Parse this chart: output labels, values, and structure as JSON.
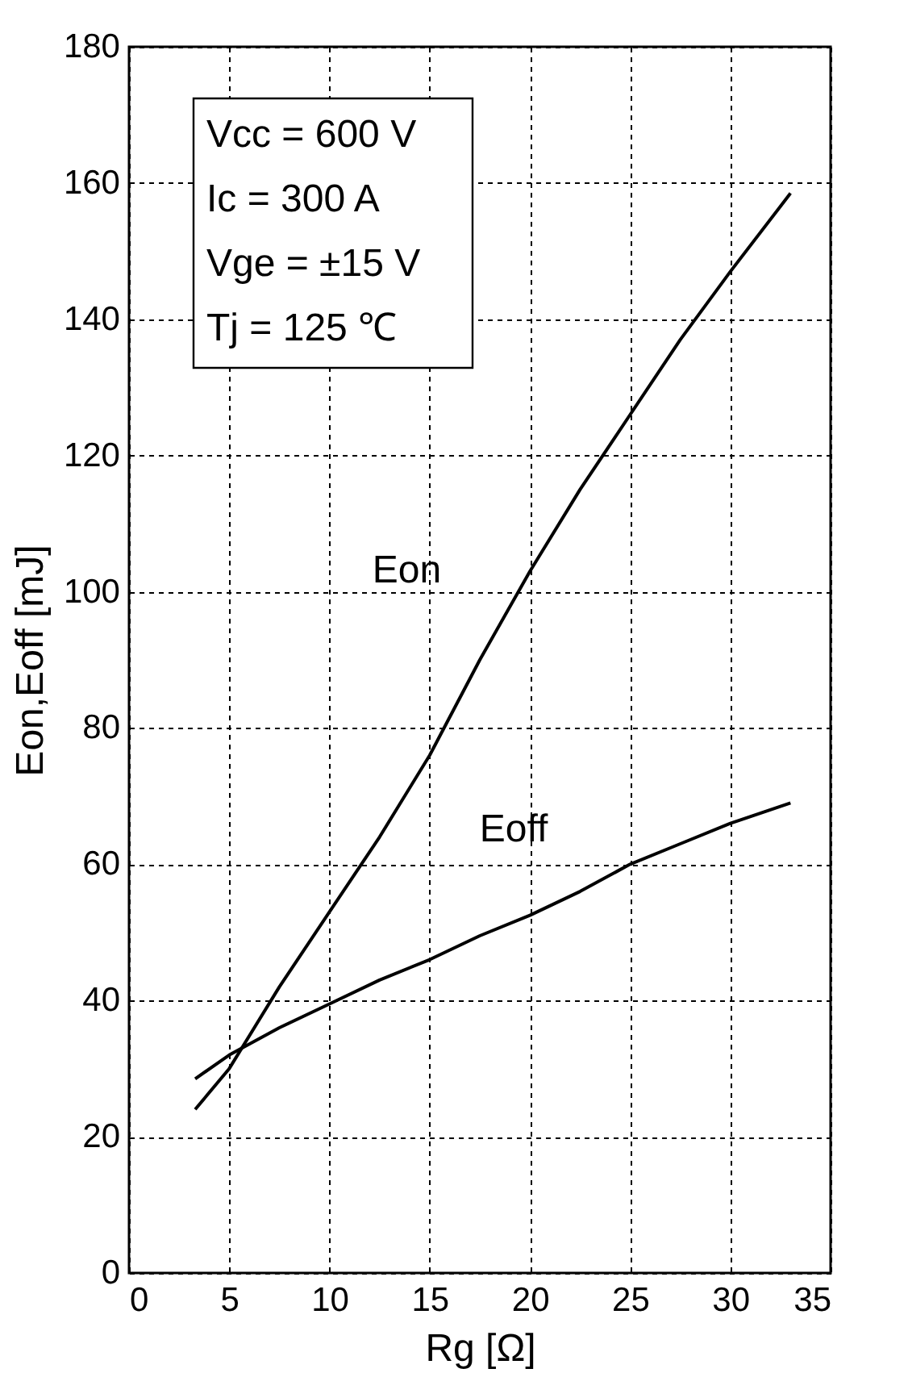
{
  "chart_data": {
    "type": "line",
    "xlabel": "Rg [Ω]",
    "ylabel": "Eon,Eoff [mJ]",
    "annotations": [
      "Vcc = 600 V",
      "Ic = 300 A",
      "Vge = ±15 V",
      "Tj = 125 ℃"
    ],
    "series": [
      {
        "name": "Eon",
        "color": "#000000",
        "x": [
          3.3,
          5,
          7.5,
          10,
          12.5,
          15,
          17.5,
          20,
          22.5,
          25,
          27.5,
          30,
          33
        ],
        "values": [
          24,
          30,
          42,
          53,
          64,
          76,
          90,
          103,
          115,
          126,
          137,
          147,
          158.5
        ]
      },
      {
        "name": "Eoff",
        "color": "#000000",
        "x": [
          3.3,
          5,
          7.5,
          10,
          12.5,
          15,
          17.5,
          20,
          22.5,
          25,
          27.5,
          30,
          33
        ],
        "values": [
          28.5,
          32,
          36,
          39.5,
          43,
          46,
          49.5,
          52.5,
          56,
          60,
          63,
          66,
          69
        ]
      }
    ],
    "xlim": [
      0,
      35
    ],
    "xticks": [
      0,
      5,
      10,
      15,
      20,
      25,
      30,
      35
    ],
    "ylim": [
      0,
      180
    ],
    "yticks": [
      0,
      20,
      40,
      60,
      80,
      100,
      120,
      140,
      160,
      180
    ],
    "grid": true,
    "marker": "none",
    "line_style": "solid"
  }
}
